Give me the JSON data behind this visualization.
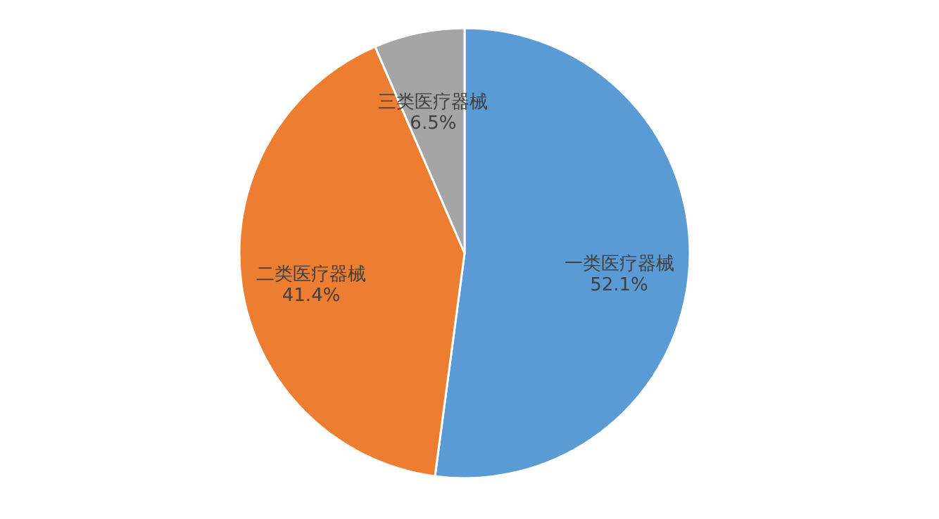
{
  "chart_data": {
    "type": "pie",
    "categories": [
      "一类医疗器械",
      "二类医疗器械",
      "三类医疗器械"
    ],
    "values": [
      52.1,
      41.4,
      6.5
    ],
    "value_labels": [
      "52.1%",
      "41.4%",
      "6.5%"
    ],
    "colors": [
      "#5b9bd5",
      "#ed7d31",
      "#a5a5a5"
    ],
    "legend": false
  }
}
